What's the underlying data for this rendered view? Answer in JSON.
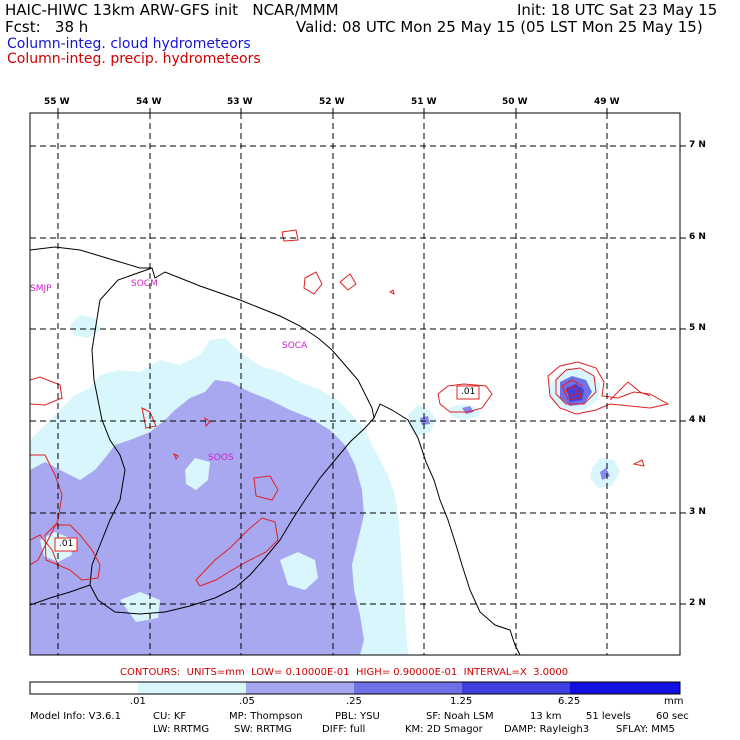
{
  "header": {
    "title_left": "HAIC-HIWC 13km ARW-GFS init   NCAR/MMM",
    "init": "Init: 18 UTC Sat 23 May 15",
    "fcst": "Fcst:   38 h",
    "valid": "Valid: 08 UTC Mon 25 May 15 (05 LST Mon 25 May 15)",
    "legend_cloud": "Column-integ. cloud hydrometeors",
    "legend_precip": "Column-integ. precip. hydrometeors"
  },
  "colors": {
    "cloud_text": "#1515d0",
    "precip_text": "#d00000",
    "contour": "#e02020",
    "shade_1": "#d8f6fb",
    "shade_2": "#a8a8f0",
    "shade_3": "#7070e8",
    "shade_4": "#4040e0",
    "shade_5": "#1010e0",
    "coast": "#000000"
  },
  "map": {
    "lon_labels": [
      "55 W",
      "54 W",
      "53 W",
      "52 W",
      "51 W",
      "50 W",
      "49 W"
    ],
    "lat_labels": [
      "7 N",
      "6 N",
      "5 N",
      "4 N",
      "3 N",
      "2 N"
    ],
    "sites": [
      "SMJP",
      "SOCM",
      "SOCA",
      "SOOS"
    ],
    "contour_labels": [
      ".01",
      ".01"
    ]
  },
  "contour_info": "CONTOURS:  UNITS=mm  LOW= 0.10000E-01  HIGH= 0.90000E-01  INTERVAL=X  3.0000",
  "colorbar": {
    "tick_labels": [
      ".01",
      ".05",
      ".25",
      "1.25",
      "6.25"
    ],
    "unit": "mm"
  },
  "footer": {
    "line1": [
      "Model Info: V3.6.1",
      "CU: KF",
      "MP: Thompson",
      "PBL: YSU",
      "SF: Noah LSM",
      "13 km",
      "51 levels",
      "60 sec"
    ],
    "line2": [
      "LW: RRTMG",
      "SW: RRTMG",
      "DIFF: full",
      "KM: 2D Smagor",
      "DAMP: Rayleigh3",
      "SFLAY: MM5"
    ]
  }
}
